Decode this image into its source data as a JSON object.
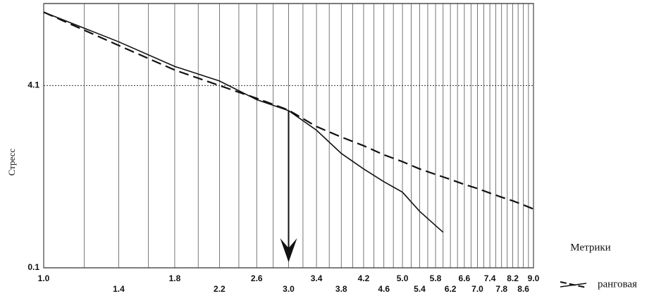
{
  "chart_data": {
    "type": "line",
    "y_label": "Стресс",
    "x_label": "Метрики",
    "x_scale": "log",
    "xlim": [
      1.0,
      9.0
    ],
    "ylim": [
      0.1,
      5.9
    ],
    "xticks": [
      {
        "value": 1.0,
        "label": "1.0"
      },
      1.4,
      1.8,
      2.2,
      2.6,
      {
        "value": 3.0,
        "label": "3.0"
      },
      3.4,
      3.8,
      4.2,
      4.6,
      {
        "value": 5.0,
        "label": "5.0"
      },
      5.4,
      5.8,
      6.2,
      6.6,
      {
        "value": 7.0,
        "label": "7.0"
      },
      7.4,
      7.8,
      8.2,
      8.6,
      {
        "value": 9.0,
        "label": "9.0"
      }
    ],
    "xminor": [
      1.2,
      1.6,
      2.0,
      2.4,
      2.8,
      3.2,
      3.6,
      4.0,
      4.4,
      4.8,
      5.2,
      5.6,
      6.0,
      6.4,
      6.8,
      7.2,
      7.6,
      8.0,
      8.4,
      8.8
    ],
    "yticks": [
      0.1,
      4.1
    ],
    "arrow_x": 3.0,
    "series": [
      {
        "color": "#111111",
        "dash": false,
        "x": [
          1.0,
          1.4,
          1.8,
          2.2,
          2.6,
          3.0,
          3.4,
          3.8,
          4.2,
          4.6,
          5.0,
          5.4,
          6.0
        ],
        "values": [
          5.71,
          5.06,
          4.52,
          4.2,
          3.79,
          3.55,
          3.12,
          2.61,
          2.27,
          1.99,
          1.76,
          1.34,
          0.88
        ]
      },
      {
        "name": "ранговая",
        "color": "#111111",
        "dash": true,
        "x": [
          1.0,
          1.4,
          1.8,
          2.2,
          2.6,
          3.0,
          3.4,
          3.8,
          4.2,
          4.6,
          5.0,
          5.4,
          5.8,
          6.2,
          6.6,
          7.0,
          7.4,
          7.8,
          8.2,
          8.6,
          9.0
        ],
        "values": [
          5.71,
          4.98,
          4.44,
          4.1,
          3.82,
          3.56,
          3.2,
          2.97,
          2.78,
          2.58,
          2.43,
          2.27,
          2.15,
          2.04,
          1.93,
          1.84,
          1.74,
          1.65,
          1.57,
          1.48,
          1.39
        ]
      }
    ]
  }
}
